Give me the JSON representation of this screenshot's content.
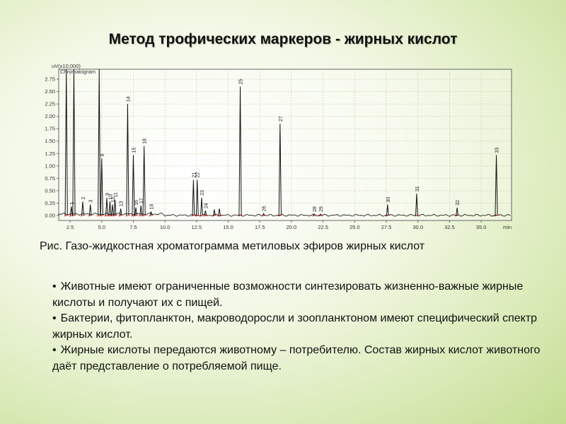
{
  "title": "Метод трофических маркеров - жирных кислот",
  "caption": "Рис.  Газо-жидкостная хроматограмма метиловых эфиров жирных кислот",
  "bullet_mark": "•",
  "bullets": [
    "Животные имеют ограниченные возможности синтезировать жизненно-важные жирные кислоты и получают их с пищей.",
    "Бактерии, фитопланктон, макроводоросли и зоопланктоном имеют специфический спектр жирных кислот.",
    "Жирные кислоты передаются животному – потребителю. Состав жирных кислот животного даёт представление о потребляемой пище."
  ],
  "colors": {
    "trace": "#111111",
    "baseline_marks": "#e01010",
    "grid": "#c8c8a0",
    "frame": "#666666"
  },
  "chart_data": {
    "type": "line",
    "y_unit_label": "uV(x10,000)",
    "legend": "Chromatogram",
    "x_unit": "min",
    "xlim": [
      1.6,
      37.4
    ],
    "ylim": [
      -0.1,
      2.95
    ],
    "x_ticks": [
      "2.5",
      "5.0",
      "7.5",
      "10.0",
      "12.5",
      "15.0",
      "17.5",
      "20.0",
      "22.5",
      "25.0",
      "27.5",
      "30.0",
      "32.5",
      "35.0"
    ],
    "y_ticks": [
      "0.00",
      "0.25",
      "0.50",
      "0.75",
      "1.00",
      "1.25",
      "1.50",
      "1.75",
      "2.00",
      "2.25",
      "2.50",
      "2.75"
    ],
    "grid": true,
    "peaks": [
      {
        "label": "",
        "t": 2.2,
        "h": 2.95
      },
      {
        "label": "1",
        "t": 2.6,
        "h": 0.18
      },
      {
        "label": "",
        "t": 2.8,
        "h": 2.95
      },
      {
        "label": "2",
        "t": 3.5,
        "h": 0.28
      },
      {
        "label": "3",
        "t": 4.1,
        "h": 0.22
      },
      {
        "label": "",
        "t": 4.8,
        "h": 2.95
      },
      {
        "label": "6",
        "t": 5.0,
        "h": 1.15
      },
      {
        "label": "9",
        "t": 5.4,
        "h": 0.36
      },
      {
        "label": "10",
        "t": 5.65,
        "h": 0.28
      },
      {
        "label": "12",
        "t": 5.85,
        "h": 0.22
      },
      {
        "label": "11",
        "t": 6.05,
        "h": 0.32
      },
      {
        "label": "13",
        "t": 6.5,
        "h": 0.14
      },
      {
        "label": "14",
        "t": 7.05,
        "h": 2.25
      },
      {
        "label": "15",
        "t": 7.5,
        "h": 1.22
      },
      {
        "label": "16",
        "t": 7.7,
        "h": 0.16
      },
      {
        "label": "17",
        "t": 8.1,
        "h": 0.2
      },
      {
        "label": "18",
        "t": 8.35,
        "h": 1.4
      },
      {
        "label": "19",
        "t": 8.9,
        "h": 0.08
      },
      {
        "label": "21",
        "t": 12.25,
        "h": 0.72
      },
      {
        "label": "22",
        "t": 12.55,
        "h": 0.72
      },
      {
        "label": "23",
        "t": 12.9,
        "h": 0.36
      },
      {
        "label": "24",
        "t": 13.2,
        "h": 0.1
      },
      {
        "label": "",
        "t": 13.9,
        "h": 0.12
      },
      {
        "label": "",
        "t": 14.3,
        "h": 0.14
      },
      {
        "label": "25",
        "t": 15.95,
        "h": 2.6
      },
      {
        "label": "26",
        "t": 17.8,
        "h": 0.04
      },
      {
        "label": "27",
        "t": 19.1,
        "h": 1.85
      },
      {
        "label": "28",
        "t": 21.8,
        "h": 0.03
      },
      {
        "label": "29",
        "t": 22.3,
        "h": 0.03
      },
      {
        "label": "30",
        "t": 27.6,
        "h": 0.22
      },
      {
        "label": "31",
        "t": 29.9,
        "h": 0.44
      },
      {
        "label": "32",
        "t": 33.1,
        "h": 0.16
      },
      {
        "label": "33",
        "t": 36.2,
        "h": 1.22
      }
    ]
  }
}
